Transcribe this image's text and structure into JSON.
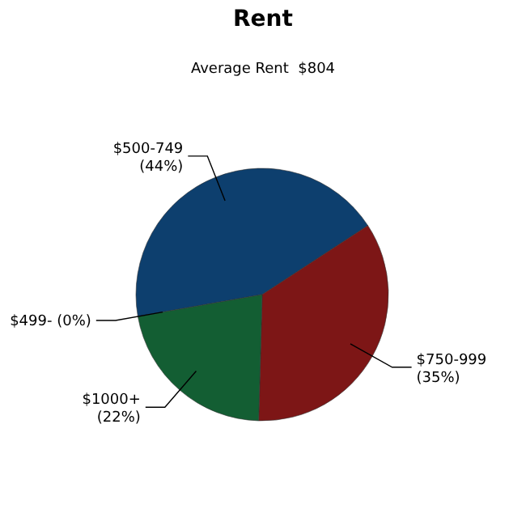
{
  "chart_data": {
    "type": "pie",
    "title": "Rent",
    "subtitle": "Average Rent  $804",
    "categories": [
      "$500-749",
      "$750-999",
      "$1000+",
      "$499-"
    ],
    "values": [
      44,
      35,
      22,
      0
    ],
    "value_labels": [
      "(44%)",
      "(35%)",
      "(22%)",
      "(0%)"
    ],
    "colors": [
      "#0d3f6e",
      "#7d1616",
      "#135e33",
      "#6a6a6a"
    ]
  }
}
